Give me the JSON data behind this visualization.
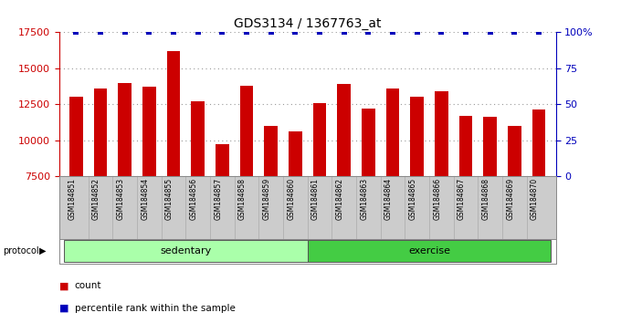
{
  "title": "GDS3134 / 1367763_at",
  "samples": [
    "GSM184851",
    "GSM184852",
    "GSM184853",
    "GSM184854",
    "GSM184855",
    "GSM184856",
    "GSM184857",
    "GSM184858",
    "GSM184859",
    "GSM184860",
    "GSM184861",
    "GSM184862",
    "GSM184863",
    "GSM184864",
    "GSM184865",
    "GSM184866",
    "GSM184867",
    "GSM184868",
    "GSM184869",
    "GSM184870"
  ],
  "counts": [
    13000,
    13600,
    14000,
    13700,
    16200,
    12700,
    9700,
    13800,
    11000,
    10600,
    12600,
    13900,
    12200,
    13600,
    13000,
    13400,
    11700,
    11600,
    11000,
    12100
  ],
  "percentile": [
    100,
    100,
    100,
    100,
    100,
    100,
    100,
    100,
    100,
    100,
    100,
    100,
    100,
    100,
    100,
    100,
    100,
    100,
    100,
    100
  ],
  "groups": [
    {
      "label": "sedentary",
      "start": 0,
      "end": 10,
      "color": "#aaffaa"
    },
    {
      "label": "exercise",
      "start": 10,
      "end": 20,
      "color": "#44cc44"
    }
  ],
  "ymin": 7500,
  "ymax": 17500,
  "yticks": [
    7500,
    10000,
    12500,
    15000,
    17500
  ],
  "bar_color": "#cc0000",
  "percentile_color": "#0000bb",
  "percentile_marker_color": "#0000bb",
  "grid_color": "#888888",
  "bg_plot": "#ffffff",
  "label_area_color": "#cccccc",
  "legend_count_color": "#cc0000",
  "legend_pct_color": "#0000bb"
}
